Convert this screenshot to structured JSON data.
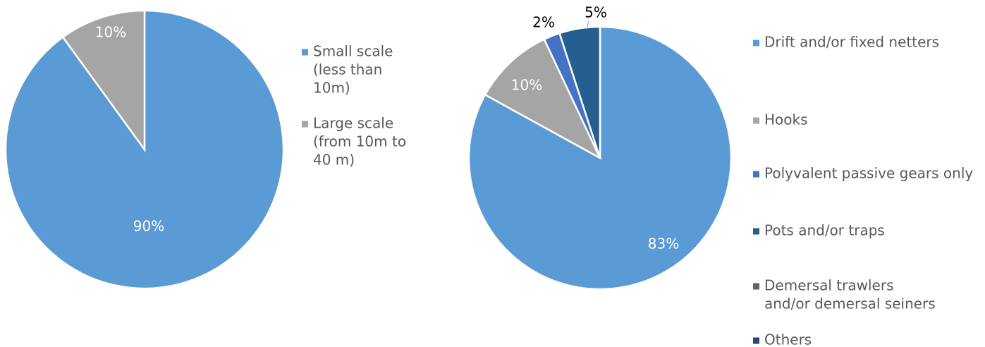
{
  "chart_data": [
    {
      "type": "pie",
      "title": "",
      "slices": [
        {
          "label": "Small scale (less than 10m)",
          "value": 90,
          "display": "90%",
          "color": "#5b9bd5"
        },
        {
          "label": "Large scale (from 10m to 40 m)",
          "value": 10,
          "display": "10%",
          "color": "#a5a5a5"
        }
      ],
      "legend": {
        "placement": "right",
        "entries": [
          {
            "lines": [
              "Small scale",
              "(less than",
              "10m)"
            ],
            "color": "#5b9bd5"
          },
          {
            "lines": [
              "Large scale",
              "(from 10m to",
              "40 m)"
            ],
            "color": "#a5a5a5"
          }
        ]
      }
    },
    {
      "type": "pie",
      "title": "",
      "slices": [
        {
          "label": "Drift and/or fixed netters",
          "value": 83,
          "display": "83%",
          "color": "#5b9bd5"
        },
        {
          "label": "Hooks",
          "value": 10,
          "display": "10%",
          "color": "#a5a5a5"
        },
        {
          "label": "Polyvalent passive gears only",
          "value": 2,
          "display": "2%",
          "color": "#4472c4"
        },
        {
          "label": "Pots and/or traps",
          "value": 5,
          "display": "5%",
          "color": "#255e91"
        }
      ],
      "legend": {
        "placement": "right",
        "entries": [
          {
            "lines": [
              "Drift and/or fixed netters"
            ],
            "color": "#5b9bd5"
          },
          {
            "lines": [
              "Hooks"
            ],
            "color": "#a5a5a5"
          },
          {
            "lines": [
              "Polyvalent passive gears only"
            ],
            "color": "#4472c4"
          },
          {
            "lines": [
              "Pots and/or traps"
            ],
            "color": "#255e91"
          },
          {
            "lines": [
              "Demersal trawlers",
              "and/or demersal seiners"
            ],
            "color": "#636363"
          },
          {
            "lines": [
              "Others"
            ],
            "color": "#264478"
          }
        ]
      }
    }
  ]
}
